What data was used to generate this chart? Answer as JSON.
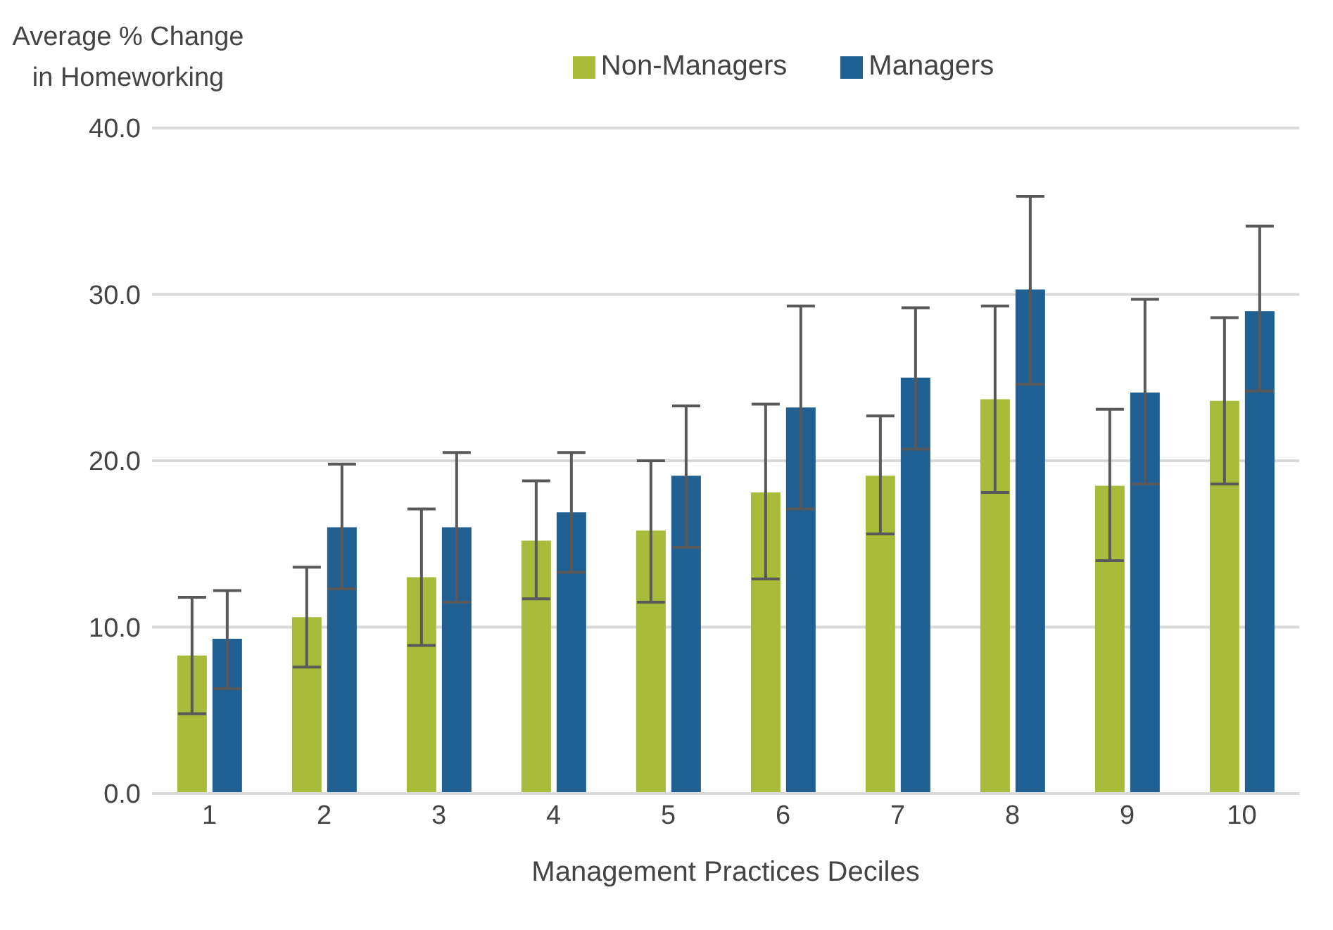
{
  "chart_data": {
    "type": "bar",
    "xlabel": "Management Practices Deciles",
    "ylabel": "Average % Change in Homeworking",
    "categories": [
      "1",
      "2",
      "3",
      "4",
      "5",
      "6",
      "7",
      "8",
      "9",
      "10"
    ],
    "series": [
      {
        "name": "Non-Managers",
        "color": "#a9bb3a",
        "values": [
          8.3,
          10.6,
          13.0,
          15.2,
          15.8,
          18.1,
          19.1,
          23.7,
          18.5,
          23.6
        ],
        "errors": [
          [
            4.8,
            11.8
          ],
          [
            7.6,
            13.6
          ],
          [
            8.9,
            17.1
          ],
          [
            11.7,
            18.8
          ],
          [
            11.5,
            20.0
          ],
          [
            12.9,
            23.4
          ],
          [
            15.6,
            22.7
          ],
          [
            18.1,
            29.3
          ],
          [
            14.0,
            23.1
          ],
          [
            18.6,
            28.6
          ]
        ]
      },
      {
        "name": "Managers",
        "color": "#216093",
        "values": [
          9.3,
          16.0,
          16.0,
          16.9,
          19.1,
          23.2,
          25.0,
          30.3,
          24.1,
          29.0
        ],
        "errors": [
          [
            6.3,
            12.2
          ],
          [
            12.3,
            19.8
          ],
          [
            11.5,
            20.5
          ],
          [
            13.3,
            20.5
          ],
          [
            14.8,
            23.3
          ],
          [
            17.1,
            29.3
          ],
          [
            20.7,
            29.2
          ],
          [
            24.6,
            35.9
          ],
          [
            18.6,
            29.7
          ],
          [
            24.2,
            34.1
          ]
        ]
      }
    ],
    "ylim": [
      0,
      40
    ],
    "yticks": [
      {
        "value": 0,
        "label": "0.0"
      },
      {
        "value": 10,
        "label": "10.0"
      },
      {
        "value": 20,
        "label": "20.0"
      },
      {
        "value": 30,
        "label": "30.0"
      },
      {
        "value": 40,
        "label": "40.0"
      }
    ],
    "grid": "y",
    "legend": "top"
  }
}
